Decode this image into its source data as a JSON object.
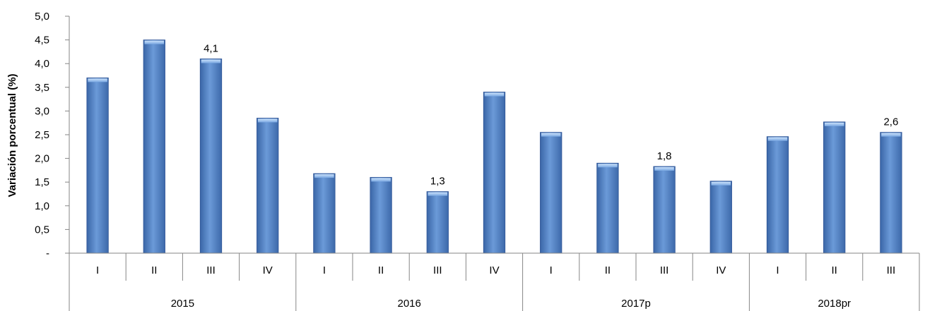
{
  "chart_data": {
    "type": "bar",
    "title": "",
    "xlabel": "",
    "ylabel": "Variación porcentual (%)",
    "ylim": [
      0,
      5
    ],
    "yticks": [
      "-",
      "0,5",
      "1,0",
      "1,5",
      "2,0",
      "2,5",
      "3,0",
      "3,5",
      "4,0",
      "4,5",
      "5,0"
    ],
    "grid": false,
    "legend": "none",
    "bar_color": "#4f81bd",
    "groups": [
      {
        "label": "2015",
        "categories": [
          "I",
          "II",
          "III",
          "IV"
        ]
      },
      {
        "label": "2016",
        "categories": [
          "I",
          "II",
          "III",
          "IV"
        ]
      },
      {
        "label": "2017p",
        "categories": [
          "I",
          "II",
          "III",
          "IV"
        ]
      },
      {
        "label": "2018pr",
        "categories": [
          "I",
          "II",
          "III"
        ]
      }
    ],
    "values": [
      3.7,
      4.5,
      4.1,
      2.85,
      1.68,
      1.6,
      1.3,
      3.4,
      2.55,
      1.9,
      1.83,
      1.52,
      2.46,
      2.77,
      2.55
    ],
    "data_labels": [
      "",
      "",
      "4,1",
      "",
      "",
      "",
      "1,3",
      "",
      "",
      "",
      "1,8",
      "",
      "",
      "",
      "2,6"
    ]
  }
}
